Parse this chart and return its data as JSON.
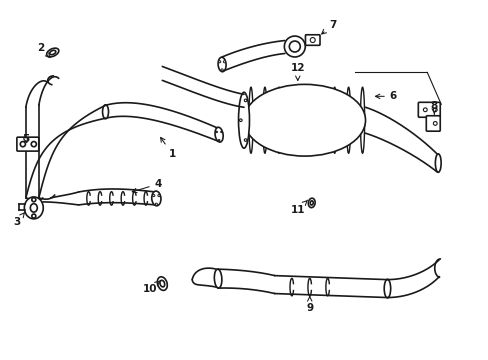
{
  "background_color": "#ffffff",
  "line_color": "#1a1a1a",
  "line_width": 1.2,
  "figsize": [
    4.89,
    3.6
  ],
  "dpi": 100
}
